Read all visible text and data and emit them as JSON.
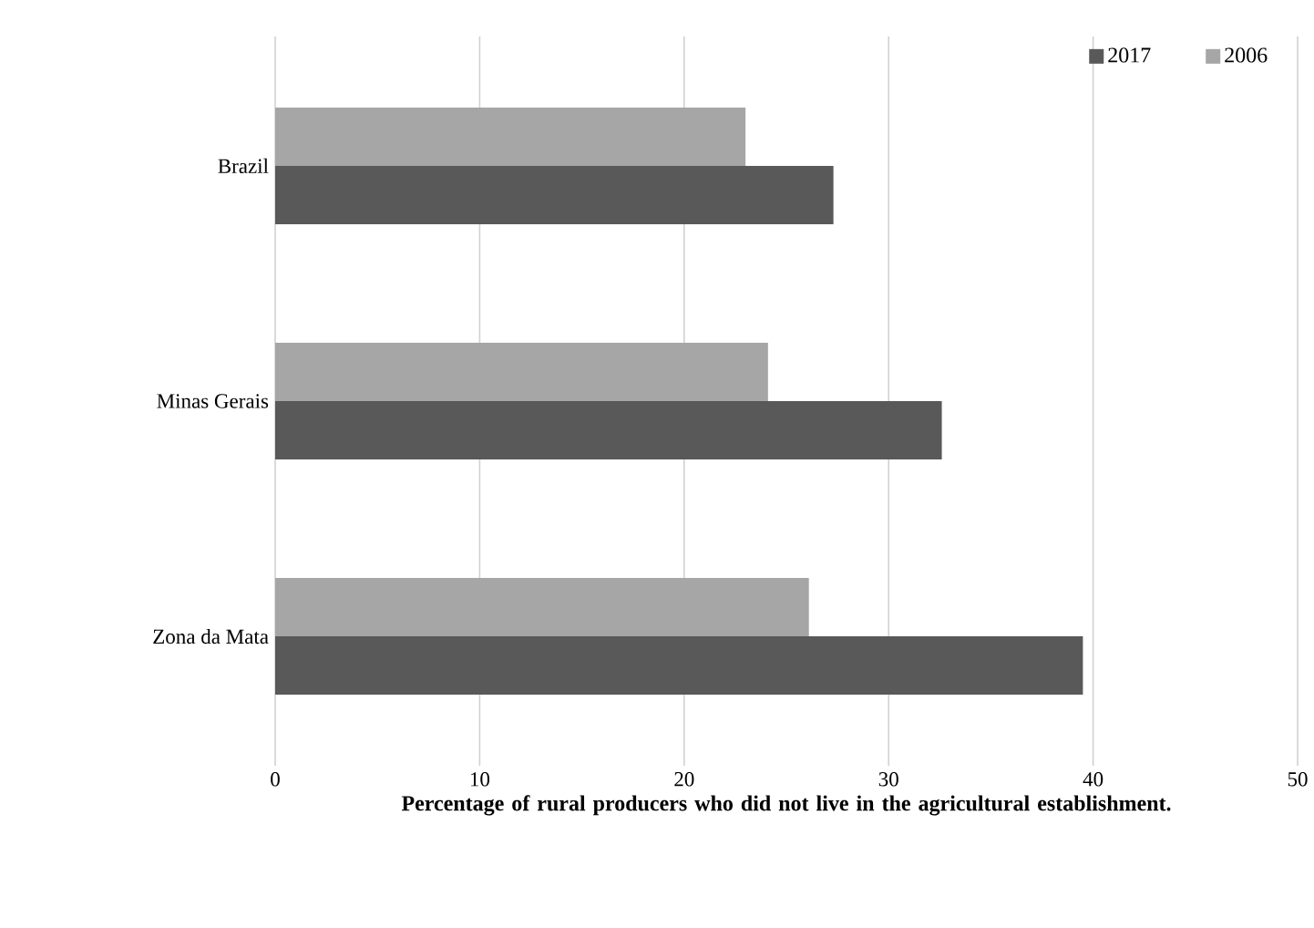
{
  "chart_data": {
    "type": "bar",
    "orientation": "horizontal",
    "xlabel": "Percentage of rural producers who did not live in the agricultural establishment.",
    "categories": [
      "Brazil",
      "Minas Gerais",
      "Zona da Mata"
    ],
    "series": [
      {
        "name": "2017",
        "color": "#595959",
        "values": [
          27.3,
          32.6,
          39.5
        ]
      },
      {
        "name": "2006",
        "color": "#a6a6a6",
        "values": [
          23.0,
          24.1,
          26.1
        ]
      }
    ],
    "xlim": [
      0,
      50
    ],
    "xticks": [
      0,
      10,
      20,
      30,
      40,
      50
    ],
    "grid": "x",
    "legend": "top right"
  }
}
